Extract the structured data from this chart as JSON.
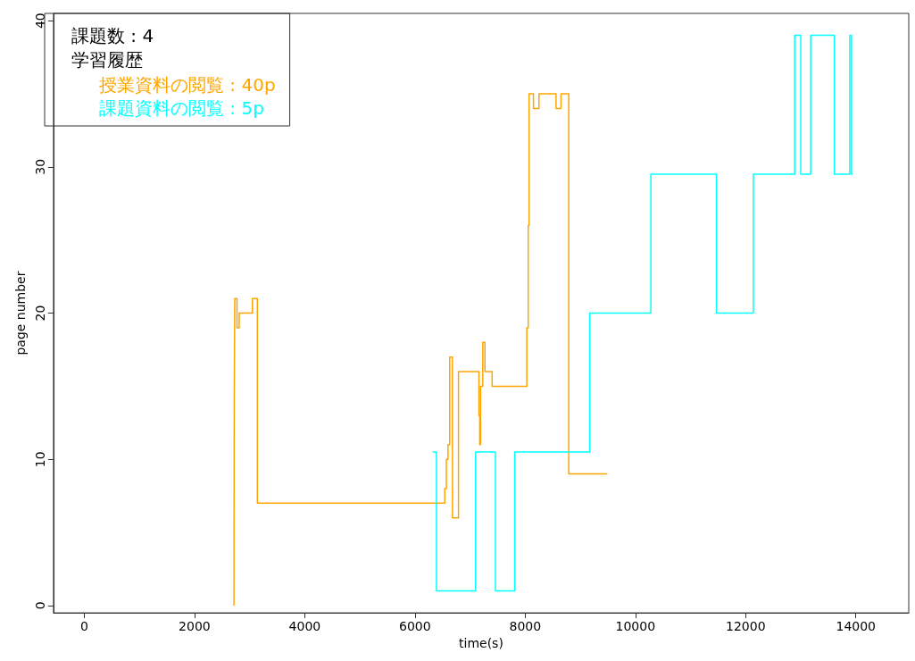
{
  "chart_data": {
    "type": "step",
    "xlabel": "time(s)",
    "ylabel": "page number",
    "annotations": [
      "課題数 : 4",
      "学習履歴"
    ],
    "legend": "top left",
    "grid": false,
    "marker": "none",
    "line_style": "solid",
    "xlim": [
      -560,
      14960
    ],
    "xticks": [
      0,
      2000,
      4000,
      6000,
      8000,
      10000,
      12000,
      14000
    ],
    "ylim": [
      -0.5,
      40.5
    ],
    "yticks": [
      0,
      10,
      20,
      30,
      40
    ],
    "series": [
      {
        "name": "授業資料の閲覧 : 40p",
        "color": "#ffa500",
        "x": [
          2715,
          2720,
          2730,
          2770,
          2810,
          3050,
          3140,
          6540,
          6570,
          6600,
          6630,
          6680,
          6790,
          7160,
          7175,
          7190,
          7230,
          7270,
          7400,
          8030,
          8055,
          8070,
          8150,
          8250,
          8560,
          8650,
          8790,
          9490
        ],
        "values": [
          0,
          14,
          21,
          19,
          20,
          21,
          7,
          8,
          10,
          11,
          17,
          6,
          16,
          13,
          11,
          15,
          18,
          16,
          15,
          19,
          26,
          35,
          34,
          35,
          34,
          35,
          9,
          9
        ]
      },
      {
        "name": "課題資料の閲覧 : 5p",
        "color": "#00ffff",
        "x": [
          6320,
          6390,
          7100,
          7460,
          7810,
          9170,
          10280,
          11470,
          12140,
          12890,
          13000,
          13180,
          13610,
          13890,
          13920,
          13940
        ],
        "values": [
          10.5,
          1,
          10.5,
          1,
          10.5,
          20,
          29.5,
          20,
          29.5,
          39,
          29.5,
          39,
          29.5,
          39,
          29.5,
          29.5
        ]
      }
    ]
  }
}
